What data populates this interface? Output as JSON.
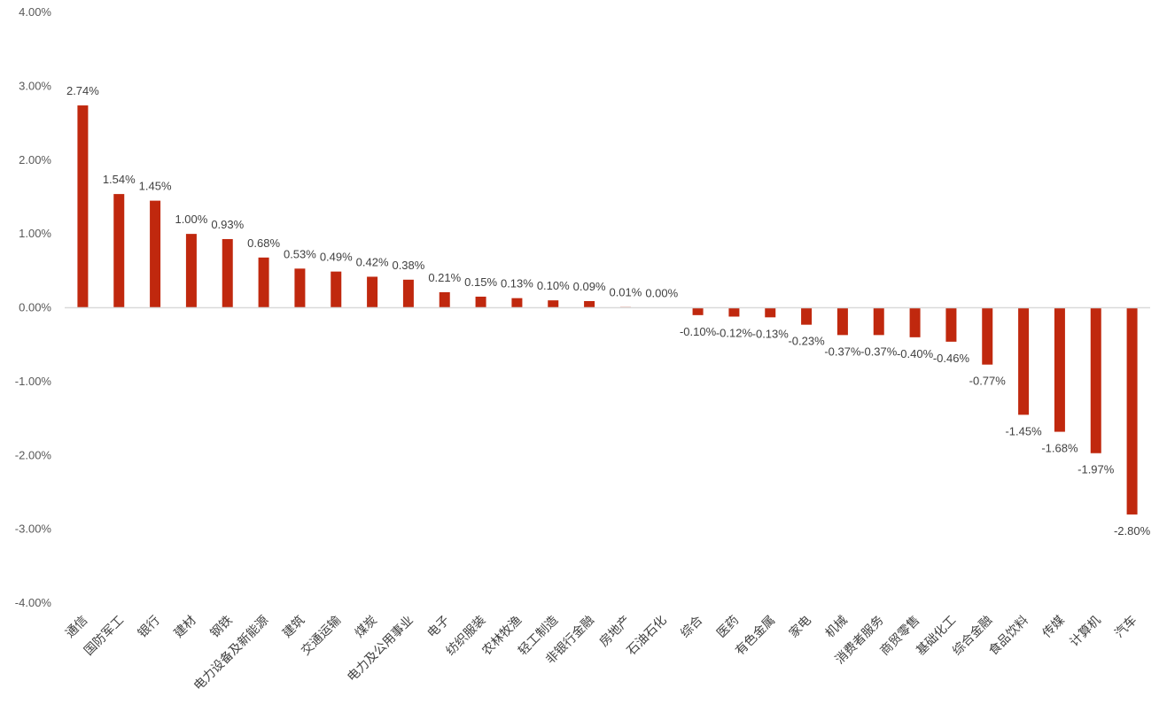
{
  "chart_data": {
    "type": "bar",
    "categories": [
      "通信",
      "国防军工",
      "银行",
      "建材",
      "钢铁",
      "电力设备及新能源",
      "建筑",
      "交通运输",
      "煤炭",
      "电力及公用事业",
      "电子",
      "纺织服装",
      "农林牧渔",
      "轻工制造",
      "非银行金融",
      "房地产",
      "石油石化",
      "综合",
      "医药",
      "有色金属",
      "家电",
      "机械",
      "消费者服务",
      "商贸零售",
      "基础化工",
      "综合金融",
      "食品饮料",
      "传媒",
      "计算机",
      "汽车"
    ],
    "values": [
      2.74,
      1.54,
      1.45,
      1.0,
      0.93,
      0.68,
      0.53,
      0.49,
      0.42,
      0.38,
      0.21,
      0.15,
      0.13,
      0.1,
      0.09,
      0.01,
      0.0,
      -0.1,
      -0.12,
      -0.13,
      -0.23,
      -0.37,
      -0.37,
      -0.4,
      -0.46,
      -0.77,
      -1.45,
      -1.68,
      -1.97,
      -2.8
    ],
    "data_labels": [
      "2.74%",
      "1.54%",
      "1.45%",
      "1.00%",
      "0.93%",
      "0.68%",
      "0.53%",
      "0.49%",
      "0.42%",
      "0.38%",
      "0.21%",
      "0.15%",
      "0.13%",
      "0.10%",
      "0.09%",
      "0.01%",
      "0.00%",
      "-0.10%",
      "-0.12%",
      "-0.13%",
      "-0.23%",
      "-0.37%",
      "-0.37%",
      "-0.40%",
      "-0.46%",
      "-0.77%",
      "-1.45%",
      "-1.68%",
      "-1.97%",
      "-2.80%"
    ],
    "y_ticks": [
      "4.00%",
      "3.00%",
      "2.00%",
      "1.00%",
      "0.00%",
      "-1.00%",
      "-2.00%",
      "-3.00%",
      "-4.00%"
    ],
    "ylim": [
      -4,
      4
    ],
    "title": "",
    "xlabel": "",
    "ylabel": "",
    "grid": false,
    "legend": "none",
    "colors": {
      "bar": "#c0280e",
      "axis": "#d9d9d9"
    }
  }
}
